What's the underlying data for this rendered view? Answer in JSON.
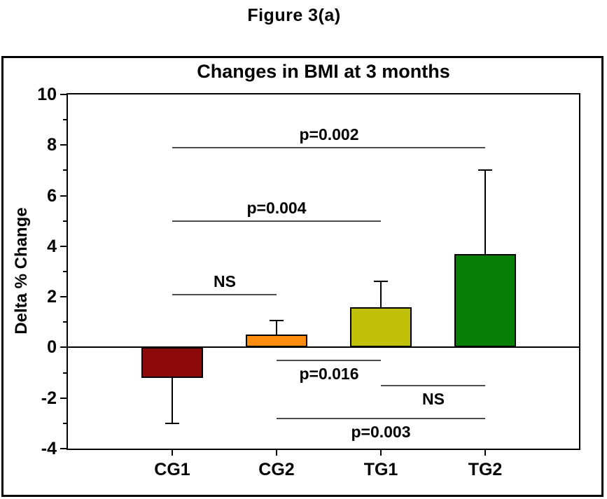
{
  "figure_title": "Figure 3(a)",
  "chart_data": {
    "type": "bar",
    "title": "Changes in BMI at 3 months",
    "ylabel": "Delta % Change",
    "xlabel": "",
    "categories": [
      "CG1",
      "CG2",
      "TG1",
      "TG2"
    ],
    "values": [
      -1.2,
      0.5,
      1.6,
      3.7
    ],
    "error_bars": [
      {
        "category": "CG1",
        "direction": "down",
        "tip": -3.0
      },
      {
        "category": "CG2",
        "direction": "up",
        "tip": 1.05
      },
      {
        "category": "TG1",
        "direction": "up",
        "tip": 2.6
      },
      {
        "category": "TG2",
        "direction": "up",
        "tip": 7.0
      }
    ],
    "bar_colors": [
      "#8C0A0A",
      "#FC8D0E",
      "#C1C10B",
      "#088008"
    ],
    "ylim": [
      -4,
      10
    ],
    "yticks": [
      10,
      8,
      6,
      4,
      2,
      0,
      -2,
      -4
    ],
    "minor_yticks": [
      9,
      7,
      5,
      3,
      1,
      -1,
      -3
    ],
    "grid": false,
    "zero_line": true,
    "legend": "none",
    "annotations": [
      {
        "label": "p=0.002",
        "from": "CG1",
        "to": "TG2",
        "y": 7.9,
        "text_position": "above"
      },
      {
        "label": "p=0.004",
        "from": "CG1",
        "to": "TG1",
        "y": 5.0,
        "text_position": "above"
      },
      {
        "label": "NS",
        "from": "CG1",
        "to": "CG2",
        "y": 2.1,
        "text_position": "above"
      },
      {
        "label": "p=0.016",
        "from": "CG2",
        "to": "TG1",
        "y": -0.5,
        "text_position": "below"
      },
      {
        "label": "NS",
        "from": "TG1",
        "to": "TG2",
        "y": -1.5,
        "text_position": "below"
      },
      {
        "label": "p=0.003",
        "from": "CG2",
        "to": "TG2",
        "y": -2.8,
        "text_position": "below"
      }
    ]
  }
}
